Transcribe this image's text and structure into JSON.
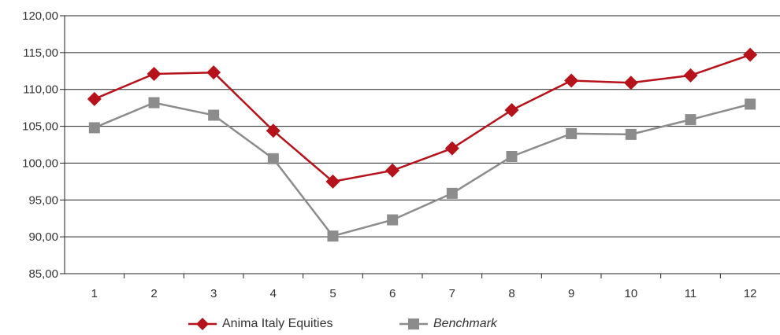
{
  "chart_data": {
    "type": "line",
    "categories": [
      "1",
      "2",
      "3",
      "4",
      "5",
      "6",
      "7",
      "8",
      "9",
      "10",
      "11",
      "12"
    ],
    "series": [
      {
        "name": "Anima Italy Equities",
        "color": "#b5121b",
        "marker": "diamond",
        "values": [
          108.7,
          112.1,
          112.3,
          104.4,
          97.5,
          99.0,
          102.0,
          107.2,
          111.2,
          110.9,
          111.9,
          114.7
        ]
      },
      {
        "name": "Benchmark",
        "color": "#8c8c8c",
        "marker": "square",
        "italic": true,
        "values": [
          104.8,
          108.2,
          106.5,
          100.6,
          90.1,
          92.3,
          95.9,
          100.9,
          104.0,
          103.9,
          105.9,
          108.0
        ]
      }
    ],
    "yticks": [
      "85,00",
      "90,00",
      "95,00",
      "100,00",
      "105,00",
      "110,00",
      "115,00",
      "120,00"
    ],
    "ylim": [
      85,
      120
    ],
    "gridlines": true,
    "legend_position": "bottom"
  }
}
